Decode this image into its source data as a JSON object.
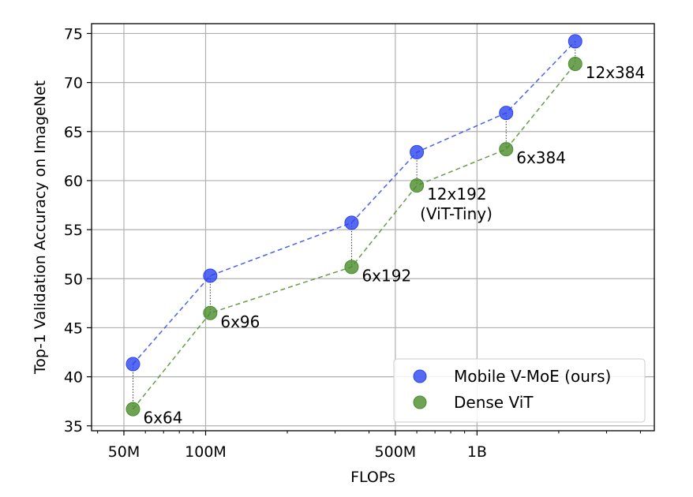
{
  "chart_data": {
    "type": "line",
    "xlabel": "FLOPs",
    "ylabel": "Top-1 Validation Accuracy on ImageNet",
    "xscale": "log",
    "xlim": [
      38000000,
      4500000000
    ],
    "ylim": [
      34.5,
      76
    ],
    "grid": true,
    "x_ticks": [
      {
        "value": 50000000,
        "label": "50M"
      },
      {
        "value": 100000000,
        "label": "100M"
      },
      {
        "value": 500000000,
        "label": "500M"
      },
      {
        "value": 1000000000,
        "label": "1B"
      }
    ],
    "y_ticks": [
      35,
      40,
      45,
      50,
      55,
      60,
      65,
      70,
      75
    ],
    "legend_position": "lower-right",
    "series": [
      {
        "name": "Mobile V-MoE (ours)",
        "color": "#2a44f0",
        "x": [
          54000000,
          104000000,
          345000000,
          600000000,
          1280000000,
          2300000000
        ],
        "y": [
          41.3,
          50.3,
          55.7,
          62.9,
          66.9,
          74.2
        ]
      },
      {
        "name": "Dense ViT",
        "color": "#4a8c2a",
        "x": [
          54000000,
          104000000,
          345000000,
          600000000,
          1280000000,
          2300000000
        ],
        "y": [
          36.7,
          46.5,
          51.2,
          59.5,
          63.2,
          71.9
        ]
      }
    ],
    "annotations": [
      {
        "lines": [
          "6x64"
        ]
      },
      {
        "lines": [
          "6x96"
        ]
      },
      {
        "lines": [
          "6x192"
        ]
      },
      {
        "lines": [
          "12x192",
          "(ViT-Tiny)"
        ]
      },
      {
        "lines": [
          "6x384"
        ]
      },
      {
        "lines": [
          "12x384"
        ]
      }
    ]
  }
}
